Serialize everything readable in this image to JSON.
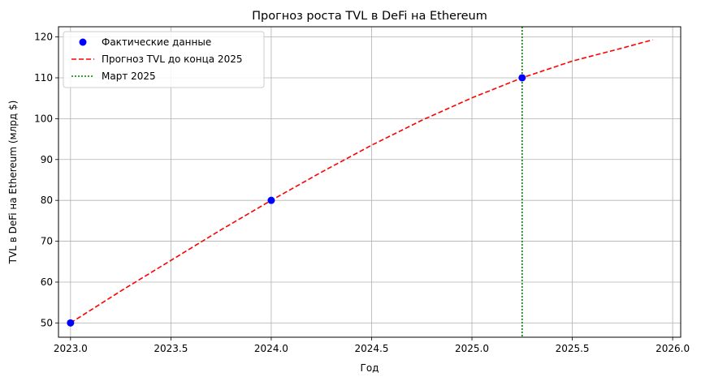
{
  "chart_data": {
    "type": "line",
    "title": "Прогноз роста TVL в DeFi на Ethereum",
    "xlabel": "Год",
    "ylabel": "TVL в DeFi на Ethereum (млрд $)",
    "xlim": [
      2022.94,
      2026.04
    ],
    "ylim": [
      46.5,
      122.5
    ],
    "xticks": [
      2023.0,
      2023.5,
      2024.0,
      2024.5,
      2025.0,
      2025.5,
      2026.0
    ],
    "xtick_labels": [
      "2023.0",
      "2023.5",
      "2024.0",
      "2024.5",
      "2025.0",
      "2025.5",
      "2026.0"
    ],
    "yticks": [
      50,
      60,
      70,
      80,
      90,
      100,
      110,
      120
    ],
    "ytick_labels": [
      "50",
      "60",
      "70",
      "80",
      "90",
      "100",
      "110",
      "120"
    ],
    "grid": true,
    "legend_position": "upper-left",
    "series": [
      {
        "name": "Фактические данные",
        "style": "markers",
        "color": "#0000ff",
        "x": [
          2023.0,
          2024.0,
          2025.25
        ],
        "y": [
          50,
          80,
          110
        ]
      },
      {
        "name": "Прогноз TVL до конца 2025",
        "style": "dashed",
        "color": "#ff0000",
        "x": [
          2023.0,
          2023.25,
          2023.5,
          2023.75,
          2024.0,
          2024.25,
          2024.5,
          2024.75,
          2025.0,
          2025.25,
          2025.5,
          2025.75,
          2025.9
        ],
        "y": [
          50,
          57.8,
          65.3,
          72.8,
          80,
          86.9,
          93.5,
          99.6,
          105.1,
          110,
          114.1,
          117.3,
          119.3
        ]
      }
    ],
    "vlines": [
      {
        "name": "Март 2025",
        "style": "dotted",
        "color": "#008000",
        "x": 2025.25
      }
    ]
  }
}
